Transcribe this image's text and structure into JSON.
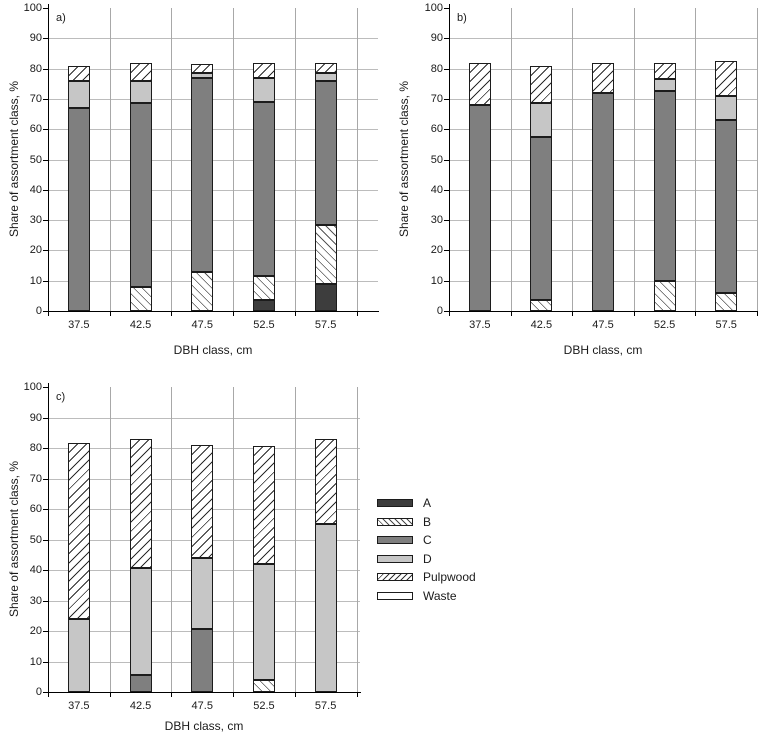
{
  "axes": {
    "y_title": "Share of assortment class, %",
    "x_title": "DBH class, cm",
    "y_ticks": [
      "0",
      "10",
      "20",
      "30",
      "40",
      "50",
      "60",
      "70",
      "80",
      "90",
      "100"
    ],
    "categories": [
      "37.5",
      "42.5",
      "47.5",
      "52.5",
      "57.5"
    ]
  },
  "legend": {
    "items": [
      {
        "key": "A",
        "label": "A",
        "swatch": "solid",
        "color": "#3d3d3d"
      },
      {
        "key": "B",
        "label": "B",
        "swatch": "hatch-backslash",
        "color": "#ffffff"
      },
      {
        "key": "C",
        "label": "C",
        "swatch": "solid",
        "color": "#7f7f7f"
      },
      {
        "key": "D",
        "label": "D",
        "swatch": "solid",
        "color": "#c6c6c6"
      },
      {
        "key": "Pulpwood",
        "label": "Pulpwood",
        "swatch": "hatch-forward",
        "color": "#ffffff"
      },
      {
        "key": "Waste",
        "label": "Waste",
        "swatch": "solid",
        "color": "#ffffff"
      }
    ]
  },
  "colors": {
    "A": "#3d3d3d",
    "C": "#7f7f7f",
    "D": "#c6c6c6",
    "Waste": "#ffffff",
    "hatch_line": "#2a2a2a",
    "grid": "#bcbcbc",
    "axis": "#000000"
  },
  "chart_data": [
    {
      "id": "a",
      "title": "a)",
      "type": "bar",
      "stacked": true,
      "grid": true,
      "ylim": [
        0,
        100
      ],
      "xlabel": "DBH class, cm",
      "ylabel": "Share of assortment class, %",
      "categories": [
        "37.5",
        "42.5",
        "47.5",
        "52.5",
        "57.5"
      ],
      "series": [
        {
          "name": "A",
          "values": [
            0,
            0,
            0,
            3.5,
            9
          ]
        },
        {
          "name": "B",
          "values": [
            0,
            8,
            13,
            8,
            19.5
          ]
        },
        {
          "name": "C",
          "values": [
            67,
            60.5,
            64,
            57.5,
            47.5
          ]
        },
        {
          "name": "D",
          "values": [
            9,
            7.5,
            1.5,
            8,
            2.5
          ]
        },
        {
          "name": "Pulpwood",
          "values": [
            5,
            6,
            3,
            5,
            3.5
          ]
        },
        {
          "name": "Waste",
          "values": [
            0,
            0,
            0,
            0,
            0
          ]
        }
      ]
    },
    {
      "id": "b",
      "title": "b)",
      "type": "bar",
      "stacked": true,
      "grid": true,
      "ylim": [
        0,
        100
      ],
      "xlabel": "DBH class, cm",
      "ylabel": "Share of assortment class, %",
      "categories": [
        "37.5",
        "42.5",
        "47.5",
        "52.5",
        "57.5"
      ],
      "series": [
        {
          "name": "A",
          "values": [
            0,
            0,
            0,
            0,
            0
          ]
        },
        {
          "name": "B",
          "values": [
            0,
            3.5,
            0,
            10,
            6
          ]
        },
        {
          "name": "C",
          "values": [
            68,
            54,
            72,
            62.5,
            57
          ]
        },
        {
          "name": "D",
          "values": [
            0,
            11,
            0,
            4,
            8
          ]
        },
        {
          "name": "Pulpwood",
          "values": [
            14,
            12.5,
            10,
            5.5,
            11.5
          ]
        },
        {
          "name": "Waste",
          "values": [
            0,
            0,
            0,
            0,
            0
          ]
        }
      ]
    },
    {
      "id": "c",
      "title": "c)",
      "type": "bar",
      "stacked": true,
      "grid": true,
      "ylim": [
        0,
        100
      ],
      "xlabel": "DBH class, cm",
      "ylabel": "Share of assortment class, %",
      "categories": [
        "37.5",
        "42.5",
        "47.5",
        "52.5",
        "57.5"
      ],
      "series": [
        {
          "name": "A",
          "values": [
            0,
            0,
            0,
            0,
            0
          ]
        },
        {
          "name": "B",
          "values": [
            0,
            0,
            0,
            4,
            0
          ]
        },
        {
          "name": "C",
          "values": [
            0,
            5.5,
            20.5,
            0,
            0
          ]
        },
        {
          "name": "D",
          "values": [
            24,
            35,
            23.5,
            38,
            55
          ]
        },
        {
          "name": "Pulpwood",
          "values": [
            57.5,
            42.5,
            37,
            38.5,
            28
          ]
        },
        {
          "name": "Waste",
          "values": [
            0,
            0,
            0,
            0,
            0
          ]
        }
      ]
    }
  ]
}
